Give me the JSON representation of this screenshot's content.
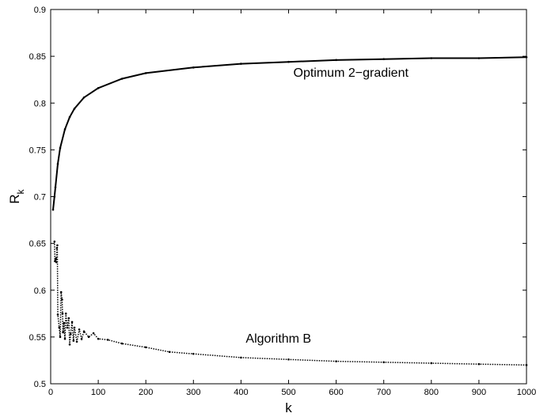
{
  "chart_data": {
    "type": "scatter",
    "title": "",
    "xlabel": "k",
    "ylabel": "R",
    "ylabel_subscript": "k",
    "xlim": [
      0,
      1000
    ],
    "ylim": [
      0.5,
      0.9
    ],
    "xticks": [
      0,
      100,
      200,
      300,
      400,
      500,
      600,
      700,
      800,
      900,
      1000
    ],
    "yticks": [
      0.5,
      0.55,
      0.6,
      0.65,
      0.7,
      0.75,
      0.8,
      0.85,
      0.9
    ],
    "xtick_labels": [
      "0",
      "100",
      "200",
      "300",
      "400",
      "500",
      "600",
      "700",
      "800",
      "900",
      "1000"
    ],
    "ytick_labels": [
      "0.5",
      "0.55",
      "0.6",
      "0.65",
      "0.7",
      "0.75",
      "0.8",
      "0.85",
      "0.9"
    ],
    "grid": false,
    "annotations": [
      {
        "text": "Optimum 2−gradient",
        "x": 510,
        "y": 0.828
      },
      {
        "text": "Algorithm B",
        "x": 410,
        "y": 0.544
      }
    ],
    "series": [
      {
        "curve": "optimum",
        "x": [
          5,
          8,
          10,
          15,
          20,
          30,
          40,
          50,
          70,
          100,
          150,
          200,
          300,
          400,
          500,
          600,
          700,
          800,
          900,
          1000
        ],
        "y": [
          0.686,
          0.7,
          0.71,
          0.735,
          0.752,
          0.772,
          0.785,
          0.794,
          0.806,
          0.816,
          0.826,
          0.832,
          0.838,
          0.842,
          0.844,
          0.846,
          0.847,
          0.848,
          0.848,
          0.849
        ]
      },
      {
        "curve": "algorithm-b",
        "x": [
          8,
          9,
          10,
          11,
          12,
          13,
          14,
          15,
          18,
          20,
          22,
          24,
          25,
          26,
          28,
          30,
          32,
          35,
          38,
          40,
          42,
          45,
          48,
          50,
          55,
          60,
          65,
          70,
          80,
          90,
          100,
          120,
          150,
          200,
          250,
          300,
          400,
          500,
          600,
          700,
          800,
          900,
          1000
        ],
        "y": [
          0.652,
          0.631,
          0.633,
          0.634,
          0.63,
          0.645,
          0.648,
          0.574,
          0.56,
          0.55,
          0.598,
          0.59,
          0.575,
          0.555,
          0.565,
          0.548,
          0.575,
          0.56,
          0.57,
          0.542,
          0.553,
          0.566,
          0.546,
          0.56,
          0.545,
          0.558,
          0.548,
          0.556,
          0.55,
          0.554,
          0.548,
          0.547,
          0.543,
          0.539,
          0.534,
          0.532,
          0.528,
          0.526,
          0.524,
          0.523,
          0.522,
          0.521,
          0.52
        ]
      }
    ]
  }
}
